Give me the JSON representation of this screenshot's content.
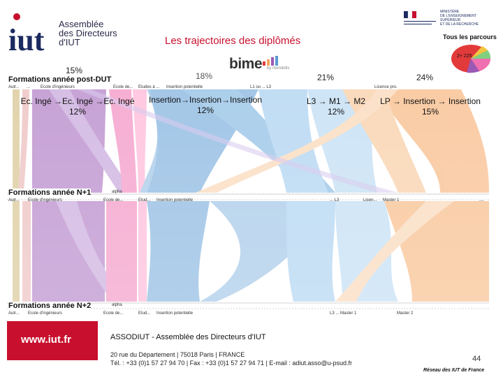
{
  "header": {
    "title": "Les trajectoires des diplômés",
    "logo_text": [
      "Assemblée",
      "des Directeurs",
      "d'IUT"
    ],
    "bime": "bime",
    "bime_sub": "by mendotis",
    "ministry_text": [
      "MINISTÈRE",
      "DE L'ENSEIGNEMENT SUPÉRIEUR",
      "ET DE LA RECHERCHE"
    ],
    "tous_parcours": "Tous les parcours",
    "pie_value": "2+ 225"
  },
  "percents": {
    "p1": "15%",
    "p2": "18%",
    "p3": "21%",
    "p4": "24%"
  },
  "rows": {
    "post_dut": "Formations année post-DUT",
    "n1": "Formations année N+1",
    "n2": "Formations année N+2"
  },
  "top_categories": [
    "Autr...",
    "...",
    "Ecole d'ingénieurs",
    "Ecole de...",
    "Etudes à ...",
    "Insertion potentielle",
    "L1 ou ... L3",
    "Licence pro."
  ],
  "mid_categories": [
    "Autr...",
    "Ecole d'ingénieurs",
    "alpha",
    "Ecole de...",
    "Etud...",
    "Insertion potentielle",
    "... L3",
    "Licen...",
    "Master 1",
    "...."
  ],
  "bottom_categories": [
    "Autr...",
    "Ecole d'ingénieurs",
    "alpha",
    "Ecole de...",
    "Etud...",
    "Insertion potentielle",
    "L3 ... Master 1",
    "Master 2"
  ],
  "callouts": {
    "c1_line1": "Ec. Ingé →Ec. Ingé →Ec. Ingé",
    "c1_line2": "12%",
    "c2_line1": "Insertion→Insertion→Insertion",
    "c2_line2": "12%",
    "c3_line1": "L3 → M1 → M2",
    "c3_line2": "12%",
    "c4_line1": "LP → Insertion → Insertion",
    "c4_line2": "15%"
  },
  "footer": {
    "url": "www.iut.fr",
    "org": "ASSODIUT - Assemblée des Directeurs d'IUT",
    "address": "20 rue du Département | 75018 Paris | FRANCE",
    "contact": "Tél. : +33 (0)1 57 27 94 70 | Fax : +33 (0)1 57 27 94 71 | E-mail : adiut.asso@u-psud.fr",
    "page": "44",
    "reseau": "Réseau des IUT de France"
  },
  "colors": {
    "accent": "#c8102e",
    "purple": "#9b59b6",
    "pink": "#f06fb0",
    "blue": "#5b9bd5",
    "orange": "#f5a35c",
    "tan": "#c9b26b",
    "grey": "#b0b0b0"
  }
}
